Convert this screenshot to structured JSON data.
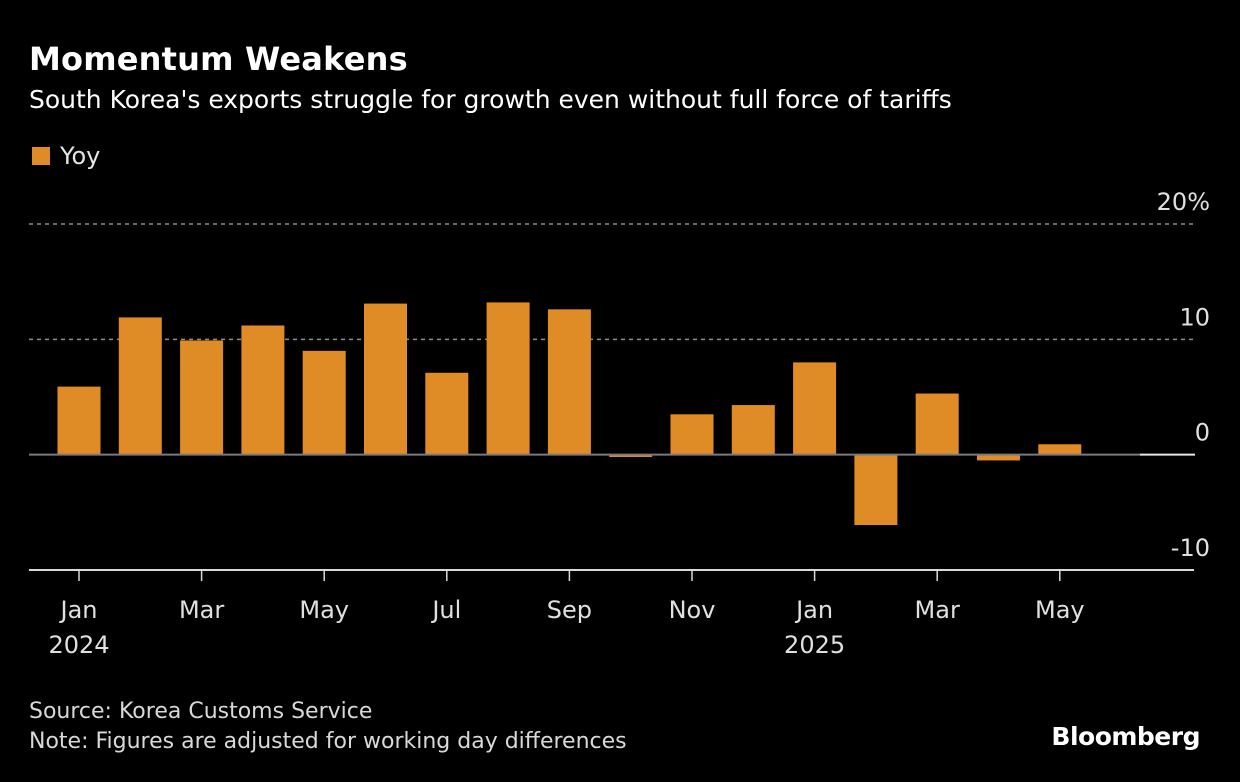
{
  "header": {
    "title": "Momentum Weakens",
    "subtitle": "South Korea's exports struggle for growth even without full force of tariffs"
  },
  "legend": {
    "label": "Yoy",
    "color": "#e08c26"
  },
  "chart_data": {
    "type": "bar",
    "title": "Momentum Weakens",
    "subtitle": "South Korea's exports struggle for growth even without full force of tariffs",
    "xlabel": "",
    "ylabel": "",
    "ylim": [
      -10,
      20
    ],
    "y_ticks": [
      {
        "value": 20,
        "label": "20%"
      },
      {
        "value": 10,
        "label": "10"
      },
      {
        "value": 0,
        "label": "0"
      },
      {
        "value": -10,
        "label": "-10"
      }
    ],
    "y_axis_position": "right",
    "grid": "dotted horizontal at 10 and 20",
    "categories": [
      "2024-01",
      "2024-02",
      "2024-03",
      "2024-04",
      "2024-05",
      "2024-06",
      "2024-07",
      "2024-08",
      "2024-09",
      "2024-10",
      "2024-11",
      "2024-12",
      "2025-01",
      "2025-02",
      "2025-03",
      "2025-04",
      "2025-05",
      "2025-06"
    ],
    "series": [
      {
        "name": "Yoy",
        "color": "#e08c26",
        "values": [
          5.9,
          11.9,
          9.9,
          11.2,
          9.0,
          13.1,
          7.1,
          13.2,
          12.6,
          -0.2,
          3.5,
          4.3,
          8.0,
          -6.1,
          5.3,
          -0.5,
          0.9,
          null
        ]
      }
    ],
    "x_ticks": [
      {
        "index": 0,
        "label": "Jan",
        "sublabel": "2024"
      },
      {
        "index": 2,
        "label": "Mar",
        "sublabel": ""
      },
      {
        "index": 4,
        "label": "May",
        "sublabel": ""
      },
      {
        "index": 6,
        "label": "Jul",
        "sublabel": ""
      },
      {
        "index": 8,
        "label": "Sep",
        "sublabel": ""
      },
      {
        "index": 10,
        "label": "Nov",
        "sublabel": ""
      },
      {
        "index": 12,
        "label": "Jan",
        "sublabel": "2025"
      },
      {
        "index": 14,
        "label": "Mar",
        "sublabel": ""
      },
      {
        "index": 16,
        "label": "May",
        "sublabel": ""
      }
    ],
    "legend_position": "top-left"
  },
  "footer": {
    "source": "Source: Korea Customs Service",
    "note": "Note: Figures are adjusted for working day differences",
    "brand": "Bloomberg"
  }
}
